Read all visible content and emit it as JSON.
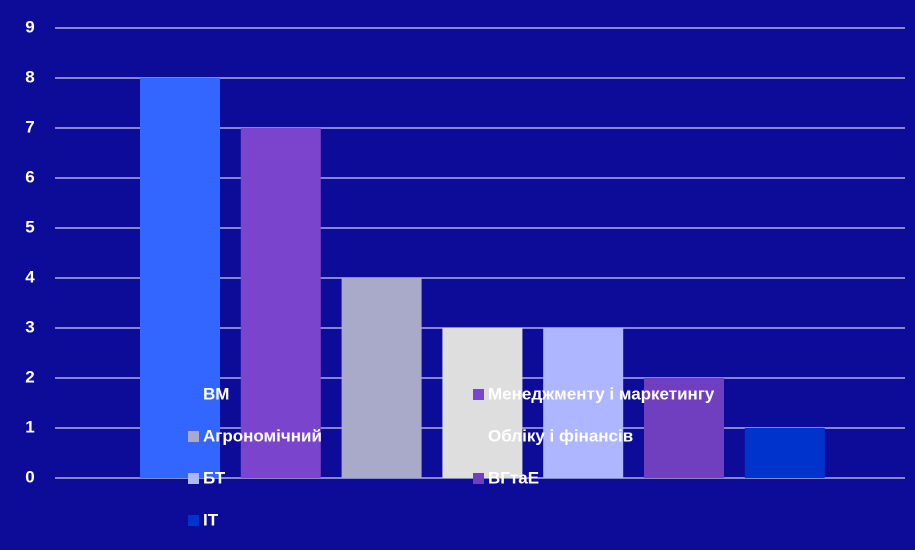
{
  "chart_data": {
    "type": "bar",
    "categories": [
      "ВМ",
      "Менеджменту і маркетингу",
      "Агрономічний",
      "Обліку і фінансів",
      "БТ",
      "ВГтаЕ",
      "ІТ"
    ],
    "values": [
      8,
      7,
      4,
      3,
      3,
      2,
      1
    ],
    "colors": [
      "#3366ff",
      "#7a44cc",
      "#a9a9c9",
      "#dedede",
      "#aeb6ff",
      "#6f3fbf",
      "#0033cc"
    ],
    "ylim": [
      0,
      9
    ],
    "yticks": [
      0,
      1,
      2,
      3,
      4,
      5,
      6,
      7,
      8,
      9
    ],
    "grid": true
  }
}
